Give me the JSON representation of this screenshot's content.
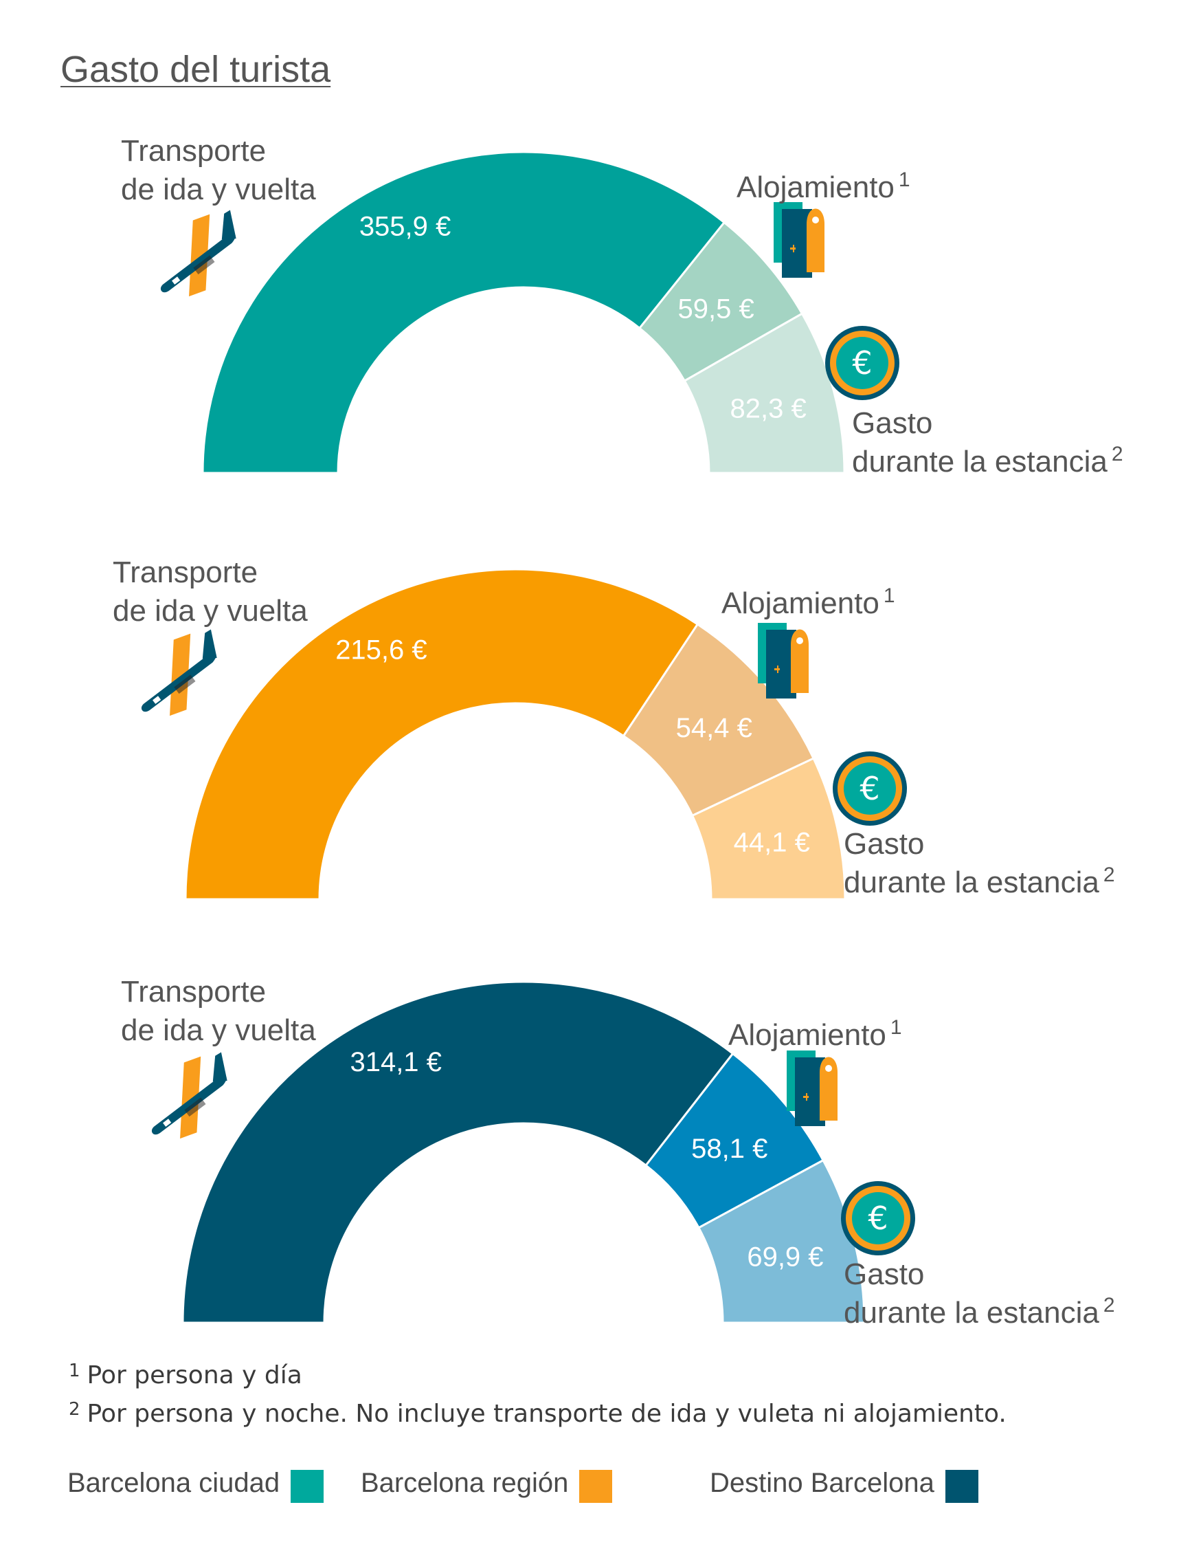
{
  "title": "Gasto del turista",
  "labels": {
    "transport": "Transporte\nde ida y vuelta",
    "lodging": "Alojamiento",
    "lodging_sup": "1",
    "stay": "Gasto\ndurante la estancia",
    "stay_sup": "2"
  },
  "value_suffix": " €",
  "footnotes": [
    {
      "mark": "1",
      "text": "Por persona y día"
    },
    {
      "mark": "2",
      "text": "Por persona y noche. No incluye transporte de ida y vuleta ni alojamiento."
    }
  ],
  "legend": [
    {
      "label": "Barcelona ciudad",
      "color": "#00a99d"
    },
    {
      "label": "Barcelona región",
      "color": "#f99d1c"
    },
    {
      "label": "Destino Barcelona",
      "color": "#00546f"
    }
  ],
  "icons": {
    "transport": "airplane-icon",
    "lodging": "hotel-door-icon",
    "stay": "euro-coin-icon"
  },
  "chart_data": [
    {
      "type": "pie",
      "subtype": "half-donut",
      "series_name": "Barcelona ciudad",
      "categories": [
        "Transporte de ida y vuelta",
        "Alojamiento",
        "Gasto durante la estancia"
      ],
      "values": [
        355.9,
        59.5,
        82.3
      ],
      "value_labels": [
        "355,9",
        "59,5",
        "82,3"
      ],
      "colors": [
        "#00a19a",
        "#a4d4c3",
        "#cbe5dc"
      ]
    },
    {
      "type": "pie",
      "subtype": "half-donut",
      "series_name": "Barcelona región",
      "categories": [
        "Transporte de ida y vuelta",
        "Alojamiento",
        "Gasto durante la estancia"
      ],
      "values": [
        215.6,
        54.4,
        44.1
      ],
      "value_labels": [
        "215,6",
        "54,4",
        "44,1"
      ],
      "colors": [
        "#f99c00",
        "#f0c085",
        "#fdd091"
      ]
    },
    {
      "type": "pie",
      "subtype": "half-donut",
      "series_name": "Destino Barcelona",
      "categories": [
        "Transporte de ida y vuelta",
        "Alojamiento",
        "Gasto durante la estancia"
      ],
      "values": [
        314.1,
        58.1,
        69.9
      ],
      "value_labels": [
        "314,1",
        "58,1",
        "69,9"
      ],
      "colors": [
        "#00546f",
        "#0086bd",
        "#7dbcd8"
      ]
    }
  ]
}
